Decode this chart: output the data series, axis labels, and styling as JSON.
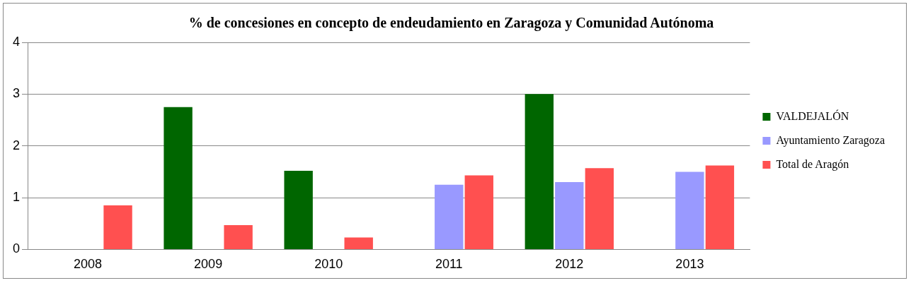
{
  "chart_data": {
    "type": "bar",
    "title": "% de concesiones en concepto de endeudamiento en Zaragoza y Comunidad Autónoma",
    "categories": [
      "2008",
      "2009",
      "2010",
      "2011",
      "2012",
      "2013"
    ],
    "series": [
      {
        "name": "VALDEJALÓN",
        "color": "#006600",
        "values": [
          null,
          2.75,
          1.52,
          null,
          3.0,
          null
        ]
      },
      {
        "name": "Ayuntamiento Zaragoza",
        "color": "#9999ff",
        "values": [
          null,
          null,
          null,
          1.25,
          1.3,
          1.5
        ]
      },
      {
        "name": "Total de Aragón",
        "color": "#ff5050",
        "values": [
          0.85,
          0.47,
          0.23,
          1.43,
          1.57,
          1.62
        ]
      }
    ],
    "ylim": [
      0,
      4
    ],
    "yticks": [
      0,
      1,
      2,
      3,
      4
    ],
    "grid": "y",
    "legend": "right"
  }
}
